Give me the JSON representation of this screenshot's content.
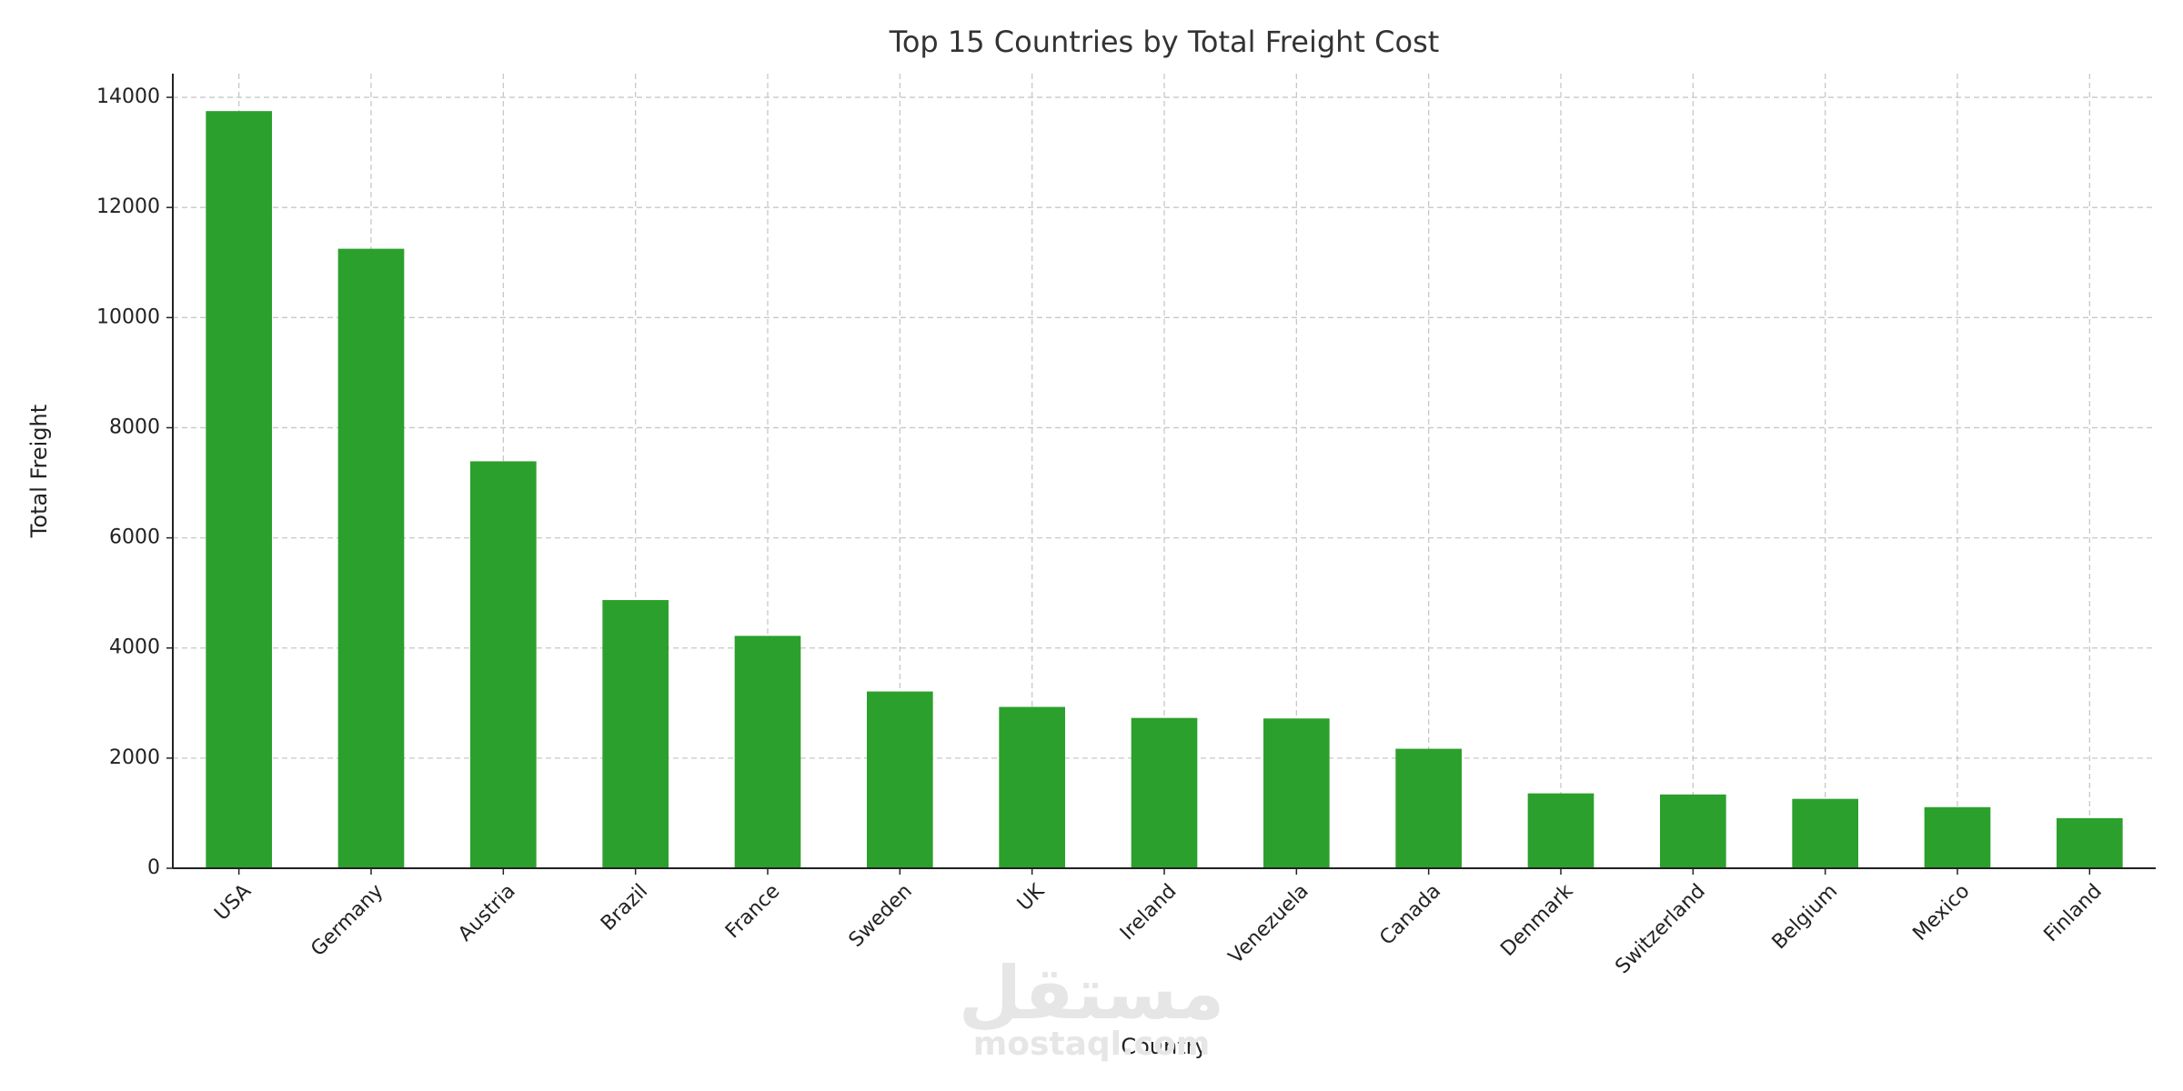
{
  "chart_data": {
    "type": "bar",
    "title": "Top 15 Countries by Total Freight Cost",
    "x_label": "Country",
    "y_label": "Total Freight",
    "categories": [
      "USA",
      "Germany",
      "Austria",
      "Brazil",
      "France",
      "Sweden",
      "UK",
      "Ireland",
      "Venezuela",
      "Canada",
      "Denmark",
      "Switzerland",
      "Belgium",
      "Mexico",
      "Finland"
    ],
    "values": [
      13750,
      11250,
      7390,
      4870,
      4220,
      3210,
      2930,
      2730,
      2720,
      2170,
      1360,
      1340,
      1260,
      1110,
      910
    ],
    "color": "#2ca02c",
    "ylim": [
      0,
      14430
    ],
    "yticks": [
      0,
      2000,
      4000,
      6000,
      8000,
      10000,
      12000,
      14000
    ],
    "grid": true,
    "watermark": [
      "مستقل",
      "mostaql.com"
    ]
  }
}
